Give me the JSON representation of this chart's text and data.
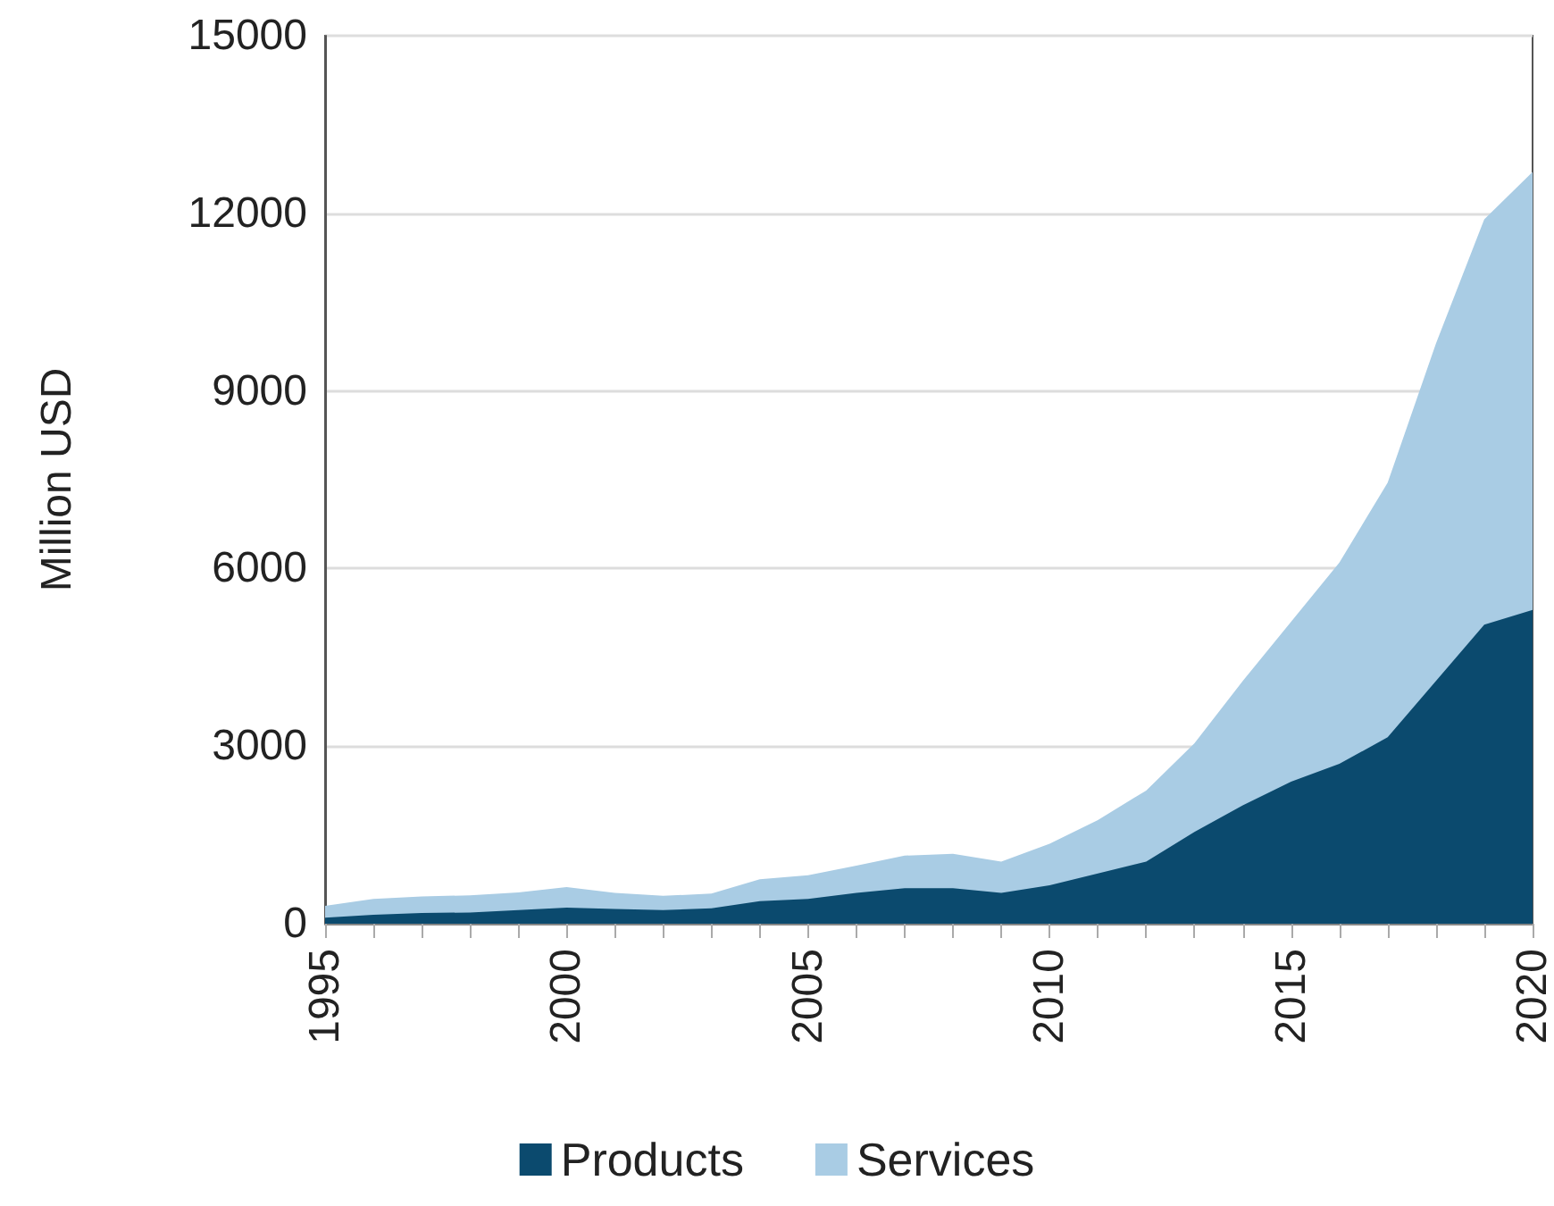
{
  "chart_data": {
    "type": "area",
    "stacked": true,
    "ylabel": "Million USD",
    "x": [
      1995,
      1996,
      1997,
      1998,
      1999,
      2000,
      2001,
      2002,
      2003,
      2004,
      2005,
      2006,
      2007,
      2008,
      2009,
      2010,
      2011,
      2012,
      2013,
      2014,
      2015,
      2016,
      2017,
      2018,
      2019,
      2020
    ],
    "series": [
      {
        "name": "Products",
        "color": "#0b4a6e",
        "values": [
          100,
          150,
          180,
          190,
          230,
          270,
          250,
          230,
          260,
          380,
          420,
          520,
          600,
          600,
          520,
          650,
          850,
          1050,
          1550,
          2000,
          2400,
          2700,
          3150,
          4100,
          5050,
          5300
        ]
      },
      {
        "name": "Services",
        "color": "#a9cce4",
        "values": [
          200,
          270,
          280,
          290,
          300,
          350,
          270,
          240,
          250,
          370,
          400,
          460,
          550,
          580,
          530,
          700,
          900,
          1200,
          1500,
          2100,
          2700,
          3400,
          4300,
          5700,
          6850,
          7400
        ]
      }
    ],
    "xlim": [
      1995,
      2020
    ],
    "xticks": [
      1995,
      2000,
      2005,
      2010,
      2015,
      2020
    ],
    "ylim": [
      0,
      15000
    ],
    "yticks": [
      0,
      3000,
      6000,
      9000,
      12000,
      15000
    ],
    "grid": "y",
    "legend": "bottom"
  }
}
